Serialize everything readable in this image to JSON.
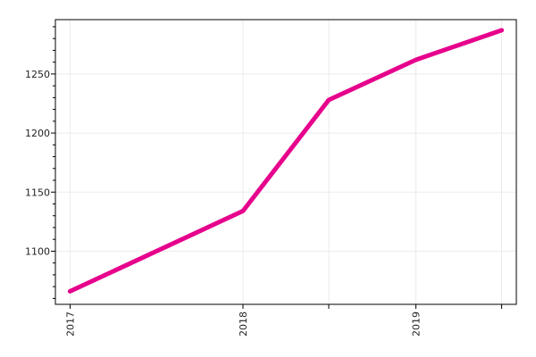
{
  "chart_data": {
    "type": "line",
    "x": [
      "2017-01-01",
      "2018-01-01",
      "2018-07-01",
      "2019-01-01",
      "2019-07-01"
    ],
    "series": [
      {
        "values": [
          1066,
          1134,
          1228,
          1262,
          1287
        ],
        "color": "#e6008c"
      }
    ],
    "x_ticks": [
      {
        "date": "2017-01-01",
        "label": "2017"
      },
      {
        "date": "2018-01-01",
        "label": "2018"
      },
      {
        "date": "2018-07-01",
        "label": ""
      },
      {
        "date": "2019-01-01",
        "label": "2019"
      },
      {
        "date": "2019-07-01",
        "label": ""
      }
    ],
    "y_ticks": [
      1100,
      1150,
      1200,
      1250
    ],
    "xlim": [
      "2016-12-01",
      "2019-08-01"
    ],
    "ylim": [
      1055,
      1296
    ],
    "grid": true,
    "legend": "none"
  }
}
